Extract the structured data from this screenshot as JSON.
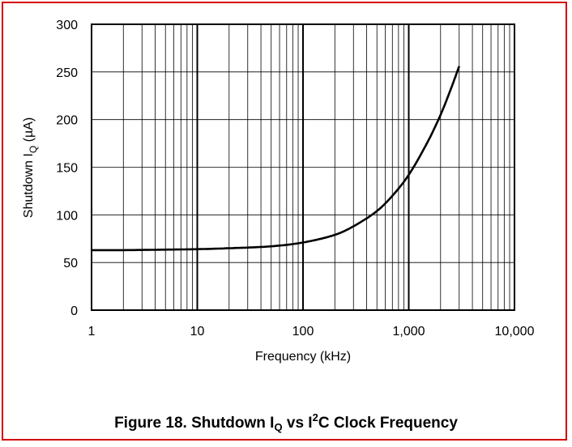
{
  "figure": {
    "caption_prefix": "Figure 18. Shutdown I",
    "caption_sub": "Q",
    "caption_mid": " vs I",
    "caption_sup": "2",
    "caption_suffix": "C Clock Frequency"
  },
  "chart_data": {
    "type": "line",
    "xlabel": "Frequency (kHz)",
    "ylabel_prefix": "Shutdown I",
    "ylabel_sub": "Q",
    "ylabel_suffix": " (µA)",
    "xscale": "log",
    "xlim": [
      1,
      10000
    ],
    "ylim": [
      0,
      300
    ],
    "x_ticks": [
      "1",
      "10",
      "100",
      "1,000",
      "10,000"
    ],
    "y_ticks": [
      "0",
      "50",
      "100",
      "150",
      "200",
      "250",
      "300"
    ],
    "grid": true,
    "series": [
      {
        "line_color": "#000000",
        "x": [
          1,
          2,
          5,
          10,
          20,
          50,
          100,
          200,
          300,
          500,
          700,
          1000,
          1500,
          2000,
          2500,
          3000
        ],
        "y": [
          63,
          63,
          63.5,
          64,
          65,
          67,
          71,
          79,
          88,
          104,
          120,
          142,
          176,
          205,
          232,
          256
        ]
      }
    ]
  }
}
